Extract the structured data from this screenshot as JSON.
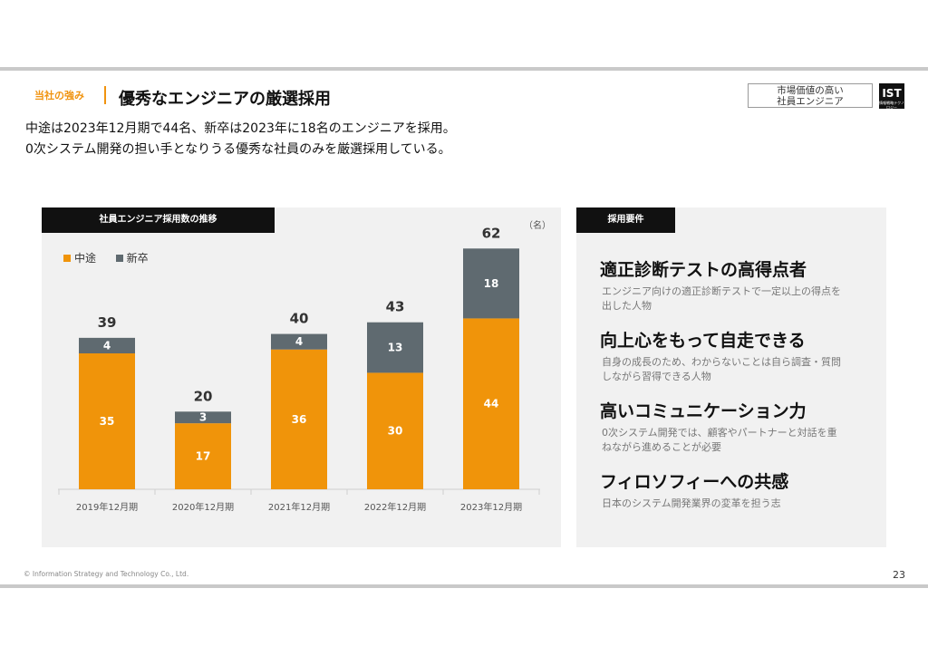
{
  "header": {
    "section_tag": "当社の強み",
    "title": "優秀なエンジニアの厳選採用",
    "badge_line1": "市場価値の高い",
    "badge_line2": "社員エンジニア",
    "logo_text": "IST",
    "logo_sub": "情報戦略テクノロジー"
  },
  "description": {
    "line1": "中途は2023年12月期で44名、新卒は2023年に18名のエンジニアを採用。",
    "line2": "0次システム開発の担い手となりうる優秀な社員のみを厳選採用している。"
  },
  "chart_panel": {
    "heading": "社員エンジニア採用数の推移",
    "unit": "（名）"
  },
  "chart_data": {
    "type": "bar",
    "stacked": true,
    "categories": [
      "2019年12月期",
      "2020年12月期",
      "2021年12月期",
      "2022年12月期",
      "2023年12月期"
    ],
    "series": [
      {
        "name": "中途",
        "values": [
          35,
          17,
          36,
          30,
          44
        ],
        "color": "#f0940a"
      },
      {
        "name": "新卒",
        "values": [
          4,
          3,
          4,
          13,
          18
        ],
        "color": "#5f6a70"
      }
    ],
    "totals": [
      39,
      20,
      40,
      43,
      62
    ],
    "ylim": [
      0,
      70
    ],
    "legend_position": "top-left",
    "grid": false
  },
  "requirements": {
    "heading": "採用要件",
    "items": [
      {
        "title": "適正診断テストの高得点者",
        "desc": "エンジニア向けの適正診断テストで一定以上の得点を出した人物"
      },
      {
        "title": "向上心をもって自走できる",
        "desc": "自身の成長のため、わからないことは自ら調査・質問しながら習得できる人物"
      },
      {
        "title": "高いコミュニケーション力",
        "desc": "0次システム開発では、顧客やパートナーと対話を重ねながら進めることが必要"
      },
      {
        "title": "フィロソフィーへの共感",
        "desc": "日本のシステム開発業界の変革を担う志"
      }
    ]
  },
  "footer": {
    "copyright": "© Information Strategy and Technology Co., Ltd.",
    "page_number": "23"
  }
}
